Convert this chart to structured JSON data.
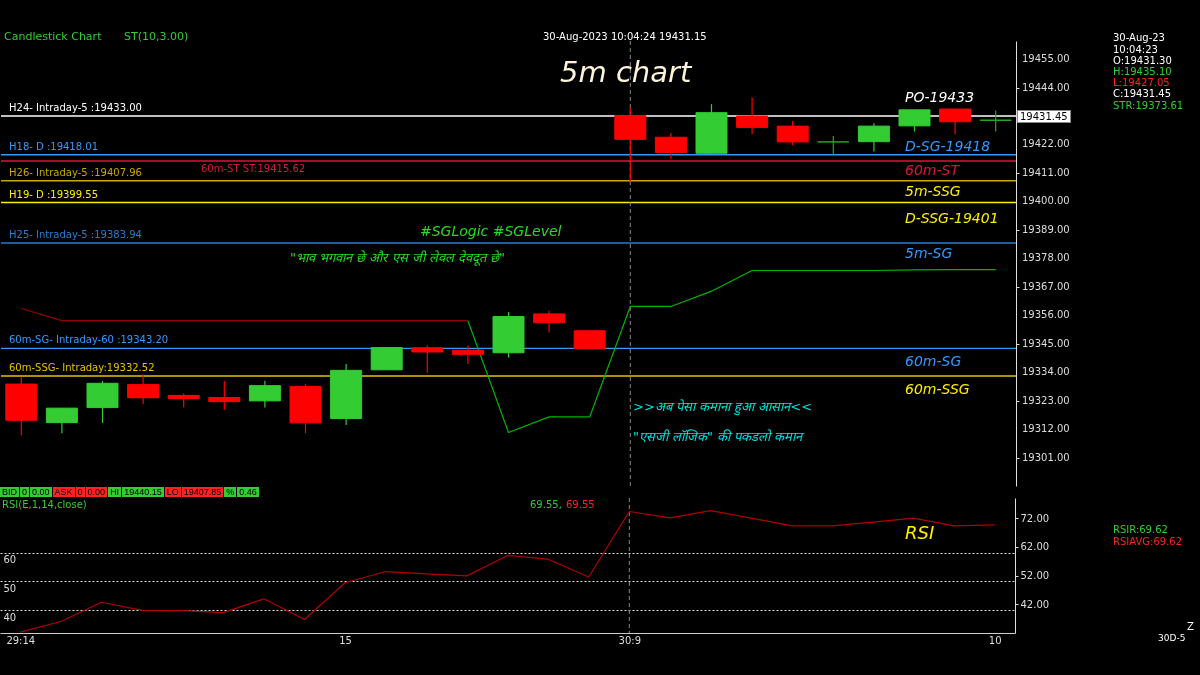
{
  "chart_data": [
    {
      "type": "candlestick",
      "title": "5m chart",
      "categories": [
        "29:14",
        null,
        null,
        null,
        null,
        null,
        null,
        null,
        "15",
        null,
        null,
        null,
        null,
        null,
        null,
        "30:9",
        null,
        null,
        null,
        null,
        null,
        null,
        null,
        null,
        "10"
      ],
      "ohlc": [
        [
          19329.4,
          19332.0,
          19309.6,
          19315.4
        ],
        [
          19314.5,
          19320.1,
          19310.4,
          19320.1
        ],
        [
          19320.3,
          19330.6,
          19314.4,
          19329.7
        ],
        [
          19329.2,
          19333.2,
          19321.7,
          19324.1
        ],
        [
          19325.0,
          19325.8,
          19320.4,
          19323.8
        ],
        [
          19324.2,
          19330.6,
          19319.5,
          19322.6
        ],
        [
          19322.9,
          19330.7,
          19320.3,
          19328.8
        ],
        [
          19328.5,
          19329.5,
          19310.4,
          19314.4
        ],
        [
          19316.1,
          19337.2,
          19313.6,
          19334.7
        ],
        [
          19334.9,
          19343.5,
          19334.9,
          19343.5
        ],
        [
          19343.4,
          19344.3,
          19333.8,
          19341.8
        ],
        [
          19342.5,
          19344.3,
          19337.2,
          19340.9
        ],
        [
          19341.5,
          19357.2,
          19339.7,
          19355.5
        ],
        [
          19356.5,
          19357.7,
          19349.3,
          19353.1
        ],
        [
          19350.0,
          19350.0,
          19343.0,
          19343.0
        ],
        [
          19433.2,
          19436.3,
          19407.85,
          19424.0
        ],
        [
          19424.8,
          19426.4,
          19416.5,
          19418.9
        ],
        [
          19418.6,
          19437.6,
          19418.6,
          19434.3
        ],
        [
          19433.0,
          19440.15,
          19426.1,
          19428.6
        ],
        [
          19429.1,
          19431.1,
          19421.7,
          19423.0
        ],
        [
          19423.0,
          19425.3,
          19417.8,
          19423.0
        ],
        [
          19423.1,
          19430.2,
          19419.3,
          19429.1
        ],
        [
          19429.2,
          19435.4,
          19427.0,
          19435.4
        ],
        [
          19435.7,
          19435.7,
          19425.9,
          19430.8
        ],
        [
          19431.3,
          19435.1,
          19427.05,
          19431.45
        ]
      ],
      "colors": [
        "#ff0000",
        "#33cc33",
        "#33cc33",
        "#ff0000",
        "#ff0000",
        "#ff0000",
        "#33cc33",
        "#ff0000",
        "#33cc33",
        "#33cc33",
        "#ff0000",
        "#ff0000",
        "#33cc33",
        "#ff0000",
        "#ff0000",
        "#ff0000",
        "#ff0000",
        "#33cc33",
        "#ff0000",
        "#ff0000",
        "#22aa22",
        "#33cc33",
        "#33cc33",
        "#ff0000",
        "#22aa22"
      ],
      "series": [
        {
          "type": "line",
          "color": "#990000",
          "values": [
            19358.6,
            19353.9,
            19353.9,
            19353.9,
            19353.9,
            19353.9,
            19353.9,
            19353.9,
            19353.9,
            19353.9,
            19353.9,
            19353.9,
            null,
            null,
            null,
            null,
            null,
            null,
            null,
            null,
            null,
            null,
            null,
            null,
            null
          ]
        },
        {
          "type": "line",
          "color": "#00b300",
          "values": [
            null,
            null,
            null,
            null,
            null,
            null,
            null,
            null,
            null,
            null,
            null,
            19353.9,
            19310.7,
            19316.7,
            19316.7,
            19359.4,
            19359.4,
            19365.3,
            19373.3,
            19373.3,
            19373.3,
            19373.3,
            19373.5,
            19373.6,
            19373.61
          ]
        }
      ],
      "ylim": [
        19290,
        19462
      ],
      "yticks": [
        {
          "value": 19301,
          "label": "19301.00"
        },
        {
          "value": 19312,
          "label": "19312.00"
        },
        {
          "value": 19323,
          "label": "19323.00"
        },
        {
          "value": 19334,
          "label": "19334.00"
        },
        {
          "value": 19345,
          "label": "19345.00"
        },
        {
          "value": 19356,
          "label": "19356.00"
        },
        {
          "value": 19367,
          "label": "19367.00"
        },
        {
          "value": 19378,
          "label": "19378.00"
        },
        {
          "value": 19389,
          "label": "19389.00"
        },
        {
          "value": 19400,
          "label": "19400.00"
        },
        {
          "value": 19411,
          "label": "19411.00"
        },
        {
          "value": 19422,
          "label": "19422.00"
        },
        {
          "value": 19444,
          "label": "19444.00"
        },
        {
          "value": 19455,
          "label": "19455.00"
        }
      ],
      "tick_labels": "y",
      "grid": false,
      "ref_lines": [
        {
          "axis": "y",
          "value": 19433,
          "label": "H24- Intraday-5 :19433.00",
          "color": "#ffffff"
        },
        {
          "axis": "y",
          "value": 19418.01,
          "label": "H18- D :19418.01",
          "color": "#3399ff"
        },
        {
          "axis": "y",
          "value": 19415.62,
          "label": "60m-ST ST:19415.62",
          "color": "#dc143c"
        },
        {
          "axis": "y",
          "value": 19407.96,
          "label": "H26- Intraday-5 :19407.96",
          "color": "#c8a800"
        },
        {
          "axis": "y",
          "value": 19399.55,
          "label": "H19- D :19399.55",
          "color": "#ffee00"
        },
        {
          "axis": "y",
          "value": 19383.94,
          "label": "H25- Intraday-5 :19383.94",
          "color": "#2a7ad0"
        },
        {
          "axis": "y",
          "value": 19343.2,
          "label": "60m-SG- Intraday-60 :19343.20",
          "color": "#3399ff"
        },
        {
          "axis": "y",
          "value": 19332.52,
          "label": "60m-SSG- Intraday:19332.52",
          "color": "#e6c200"
        },
        {
          "axis": "x",
          "value": "30:9",
          "color": "#888888",
          "line_style": "dashed"
        }
      ],
      "annotations": [
        "PO-19433",
        "D-SG-19418",
        "60m-ST",
        "5m-SSG",
        "D-SSG-19401",
        "5m-SG",
        "60m-SG",
        "60m-SSG",
        "Candlestick Chart",
        "ST(10,3.00)",
        "30-Aug-2023 10:04:24 19431.15",
        "#SGLogic  #SGLevel",
        "\"भाव भगवान छे और एस जी लेवल देवदूत छे\"",
        ">>अब पेसा कमाना हुआ आसान<<",
        "\"एसजी लॉजिक\" की पकडलो कमान",
        "30-Aug-23",
        "10:04:23",
        "O:19431.30",
        "H:19435.10",
        "L:19427.05",
        "C:19431.45",
        "STR:19373.61",
        "19431.45",
        "BID",
        "0",
        "0.00",
        "ASK",
        "0",
        "0.00",
        "HI",
        "19440.15",
        "LO",
        "19407.85",
        "%",
        "0.46"
      ]
    },
    {
      "type": "line",
      "categories": [
        "29:14",
        null,
        null,
        null,
        null,
        null,
        null,
        null,
        "15",
        null,
        null,
        null,
        null,
        null,
        null,
        "30:9",
        null,
        null,
        null,
        null,
        null,
        null,
        null,
        null,
        "10"
      ],
      "series": [
        {
          "color": "#b00000",
          "values": [
            32.3,
            36.0,
            42.7,
            39.9,
            39.8,
            39.1,
            43.9,
            36.7,
            49.5,
            53.4,
            52.6,
            51.9,
            59.0,
            57.7,
            51.5,
            74.3,
            72.1,
            74.6,
            72.0,
            69.3,
            69.3,
            70.6,
            72.0,
            69.3,
            69.62
          ]
        }
      ],
      "ylim": [
        32,
        79
      ],
      "yticks": [
        40,
        50,
        60
      ],
      "y2lim": [
        32,
        79
      ],
      "y2ticks": [
        {
          "value": 42,
          "label": "42.00"
        },
        {
          "value": 52,
          "label": "52.00"
        },
        {
          "value": 62,
          "label": "62.00"
        },
        {
          "value": 72,
          "label": "72.00"
        }
      ],
      "grid": "y",
      "ref_lines": [
        {
          "axis": "x",
          "value": "30:9",
          "color": "#888888",
          "line_style": "dashed"
        }
      ],
      "annotations": [
        "RSI(E,1,14,close)",
        "69.55,",
        "69.55",
        "RSI",
        "RSIR:69.62",
        "RSIAVG:69.62",
        "Z",
        "30D-5"
      ]
    }
  ]
}
